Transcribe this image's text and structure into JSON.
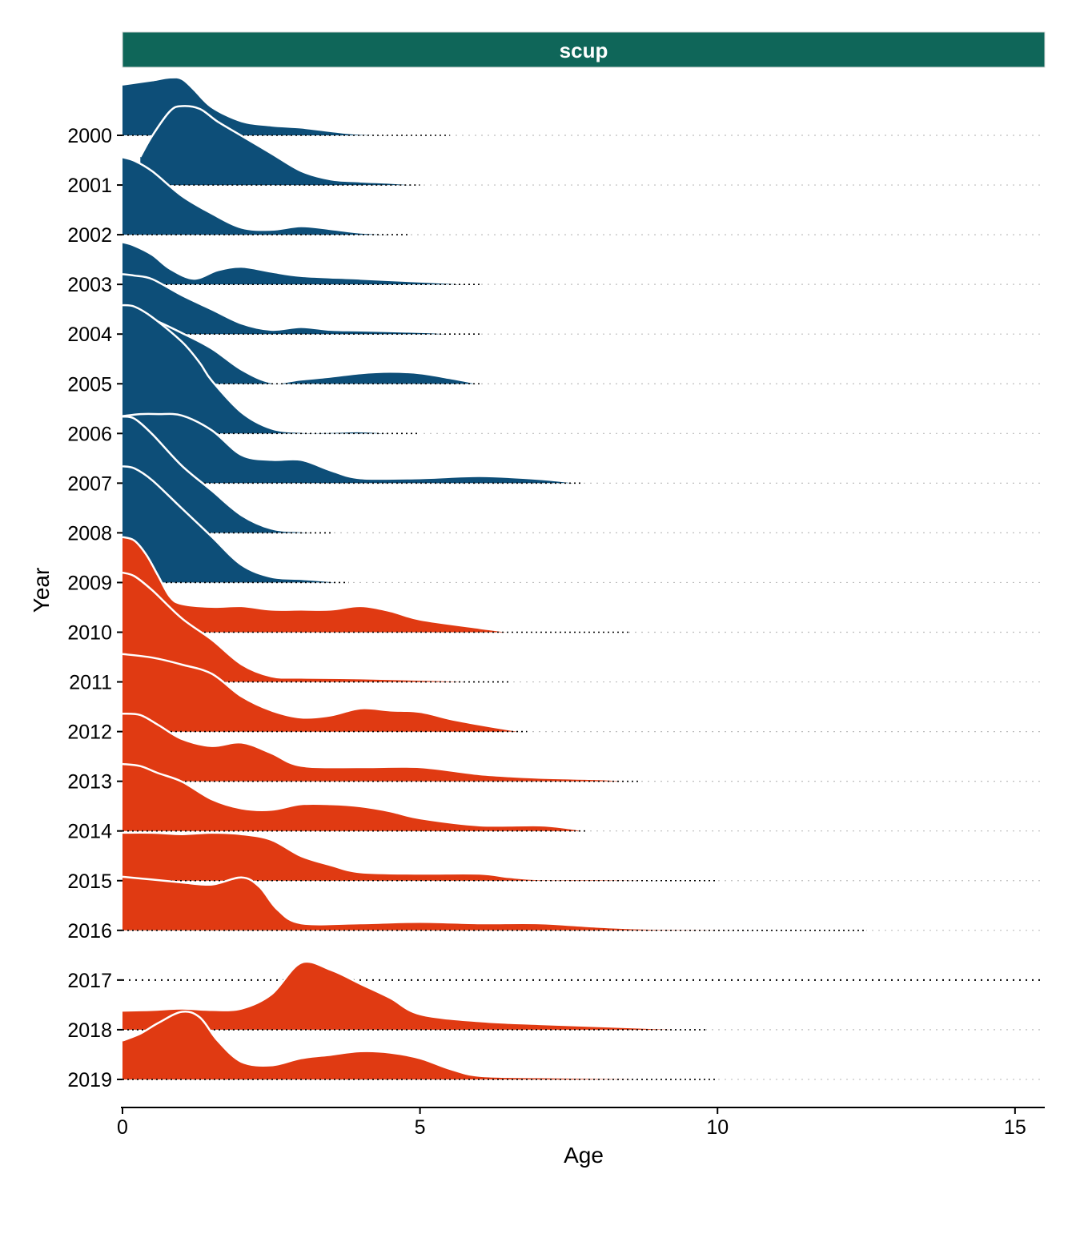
{
  "chart_data": {
    "type": "ridgeline",
    "facet_label": "scup",
    "xlabel": "Age",
    "ylabel": "Year",
    "xlim": [
      0,
      15.5
    ],
    "x_ticks": [
      0,
      5,
      10,
      15
    ],
    "colors": {
      "before_2010": "#0d4e78",
      "from_2010": "#e03a12",
      "strip": "#0f6659",
      "outline": "#ffffff"
    },
    "series": [
      {
        "year": "2000",
        "x": [
          0,
          0.25,
          0.5,
          0.8,
          1.0,
          1.2,
          1.5,
          2.0,
          2.5,
          3.0,
          3.5,
          4.0,
          5.0,
          5.5
        ],
        "y": [
          0.72,
          0.75,
          0.78,
          0.82,
          0.8,
          0.65,
          0.4,
          0.2,
          0.14,
          0.11,
          0.06,
          0.02,
          0.01,
          0
        ]
      },
      {
        "year": "2001",
        "x": [
          0.3,
          0.5,
          0.8,
          1.0,
          1.3,
          1.6,
          2.0,
          2.5,
          3.0,
          3.5,
          4.0,
          4.5,
          5.0
        ],
        "y": [
          0.4,
          0.7,
          1.05,
          1.12,
          1.08,
          0.9,
          0.7,
          0.45,
          0.2,
          0.08,
          0.05,
          0.03,
          0
        ]
      },
      {
        "year": "2002",
        "x": [
          0,
          0.2,
          0.5,
          1.0,
          1.5,
          2.0,
          2.5,
          3.0,
          3.5,
          4.0,
          4.5,
          4.8
        ],
        "y": [
          1.1,
          1.05,
          0.9,
          0.55,
          0.3,
          0.1,
          0.07,
          0.12,
          0.08,
          0.03,
          0.01,
          0
        ]
      },
      {
        "year": "2003",
        "x": [
          0,
          0.2,
          0.5,
          0.8,
          1.2,
          1.6,
          2.0,
          2.5,
          3.0,
          4.0,
          5.0,
          5.5,
          6.0
        ],
        "y": [
          0.6,
          0.55,
          0.42,
          0.22,
          0.08,
          0.2,
          0.25,
          0.18,
          0.12,
          0.08,
          0.04,
          0.02,
          0
        ]
      },
      {
        "year": "2004",
        "x": [
          0,
          0.2,
          0.5,
          1.0,
          1.5,
          2.0,
          2.5,
          3.0,
          3.5,
          4.0,
          5.0,
          5.5,
          6.0
        ],
        "y": [
          0.85,
          0.83,
          0.78,
          0.55,
          0.35,
          0.15,
          0.06,
          0.1,
          0.06,
          0.05,
          0.03,
          0.01,
          0
        ]
      },
      {
        "year": "2005",
        "x": [
          0,
          0.2,
          0.5,
          1.0,
          1.5,
          2.0,
          2.5,
          3.0,
          3.5,
          4.0,
          4.5,
          5.0,
          5.5,
          6.0
        ],
        "y": [
          1.04,
          1.02,
          0.92,
          0.72,
          0.5,
          0.2,
          0.02,
          0.06,
          0.1,
          0.15,
          0.17,
          0.15,
          0.08,
          0
        ]
      },
      {
        "year": "2006",
        "x": [
          0,
          0.2,
          0.5,
          1.0,
          1.3,
          1.5,
          2.0,
          2.5,
          3.0,
          3.5,
          4.0,
          4.5,
          5.0
        ],
        "y": [
          1.82,
          1.8,
          1.65,
          1.3,
          1.0,
          0.75,
          0.3,
          0.07,
          0.02,
          0.02,
          0.03,
          0.01,
          0
        ]
      },
      {
        "year": "2007",
        "x": [
          0,
          0.3,
          0.6,
          1.0,
          1.5,
          2.0,
          2.5,
          3.0,
          3.5,
          4.0,
          5.0,
          6.0,
          7.0,
          7.7
        ],
        "y": [
          0.95,
          0.98,
          0.98,
          0.96,
          0.75,
          0.4,
          0.33,
          0.33,
          0.18,
          0.07,
          0.07,
          0.1,
          0.06,
          0
        ]
      },
      {
        "year": "2008",
        "x": [
          0,
          0.2,
          0.5,
          1.0,
          1.5,
          2.0,
          2.5,
          3.0,
          3.5
        ],
        "y": [
          1.65,
          1.62,
          1.4,
          0.95,
          0.6,
          0.25,
          0.06,
          0.02,
          0
        ]
      },
      {
        "year": "2009",
        "x": [
          0,
          0.2,
          0.5,
          1.0,
          1.5,
          2.0,
          2.5,
          3.0,
          3.5,
          3.8
        ],
        "y": [
          1.65,
          1.62,
          1.45,
          1.05,
          0.65,
          0.25,
          0.08,
          0.05,
          0.02,
          0
        ]
      },
      {
        "year": "2010",
        "x": [
          0,
          0.2,
          0.4,
          0.6,
          0.8,
          1.0,
          1.5,
          2.0,
          2.5,
          3.0,
          3.5,
          4.0,
          4.5,
          5.0,
          6.0,
          6.5,
          7.0,
          8.5
        ],
        "y": [
          1.35,
          1.3,
          1.1,
          0.8,
          0.5,
          0.4,
          0.36,
          0.37,
          0.32,
          0.32,
          0.32,
          0.37,
          0.3,
          0.18,
          0.06,
          0.01,
          0.01,
          0
        ]
      },
      {
        "year": "2011",
        "x": [
          0,
          0.2,
          0.5,
          1.0,
          1.5,
          2.0,
          2.5,
          3.0,
          4.0,
          5.0,
          6.0,
          6.5
        ],
        "y": [
          1.55,
          1.5,
          1.3,
          0.9,
          0.6,
          0.25,
          0.08,
          0.06,
          0.05,
          0.03,
          0.01,
          0
        ]
      },
      {
        "year": "2012",
        "x": [
          0,
          0.5,
          1.0,
          1.5,
          2.0,
          2.5,
          3.0,
          3.5,
          4.0,
          4.5,
          5.0,
          5.5,
          6.0,
          6.5,
          6.8
        ],
        "y": [
          1.1,
          1.05,
          0.95,
          0.82,
          0.5,
          0.3,
          0.2,
          0.23,
          0.33,
          0.3,
          0.28,
          0.18,
          0.1,
          0.03,
          0
        ]
      },
      {
        "year": "2013",
        "x": [
          0,
          0.3,
          0.6,
          1.0,
          1.5,
          2.0,
          2.5,
          3.0,
          4.0,
          5.0,
          6.0,
          7.0,
          8.0,
          8.7
        ],
        "y": [
          0.96,
          0.94,
          0.8,
          0.6,
          0.5,
          0.55,
          0.4,
          0.22,
          0.2,
          0.2,
          0.1,
          0.05,
          0.03,
          0
        ]
      },
      {
        "year": "2014",
        "x": [
          0,
          0.3,
          0.6,
          1.0,
          1.5,
          2.0,
          2.5,
          3.0,
          3.5,
          4.0,
          4.5,
          5.0,
          6.0,
          7.0,
          7.5,
          7.8
        ],
        "y": [
          0.95,
          0.92,
          0.82,
          0.7,
          0.45,
          0.32,
          0.3,
          0.38,
          0.38,
          0.35,
          0.28,
          0.18,
          0.08,
          0.08,
          0.04,
          0
        ]
      },
      {
        "year": "2015",
        "x": [
          0,
          0.5,
          1.0,
          1.5,
          2.0,
          2.5,
          3.0,
          3.5,
          4.0,
          5.0,
          6.0,
          6.5,
          7.0,
          8.0,
          9.0,
          10.0
        ],
        "y": [
          0.68,
          0.68,
          0.66,
          0.68,
          0.66,
          0.58,
          0.35,
          0.22,
          0.12,
          0.1,
          0.1,
          0.05,
          0.02,
          0.02,
          0.01,
          0
        ]
      },
      {
        "year": "2016",
        "x": [
          0,
          0.5,
          1.0,
          1.5,
          2.0,
          2.3,
          2.6,
          3.0,
          4.0,
          5.0,
          6.0,
          7.0,
          8.0,
          9.0,
          11.0,
          12.5
        ],
        "y": [
          0.76,
          0.72,
          0.68,
          0.65,
          0.75,
          0.62,
          0.3,
          0.1,
          0.1,
          0.12,
          0.1,
          0.1,
          0.05,
          0.02,
          0.01,
          0
        ]
      },
      {
        "year": "2017",
        "x": [],
        "y": []
      },
      {
        "year": "2018",
        "x": [
          0,
          0.5,
          1.0,
          1.5,
          2.0,
          2.5,
          3.0,
          3.5,
          4.0,
          4.5,
          5.0,
          6.0,
          7.0,
          8.0,
          9.0,
          9.8
        ],
        "y": [
          0.27,
          0.28,
          0.3,
          0.28,
          0.3,
          0.5,
          0.95,
          0.85,
          0.65,
          0.45,
          0.22,
          0.12,
          0.08,
          0.05,
          0.02,
          0
        ]
      },
      {
        "year": "2019",
        "x": [
          0,
          0.3,
          0.6,
          1.0,
          1.3,
          1.6,
          2.0,
          2.5,
          3.0,
          3.5,
          4.0,
          4.5,
          5.0,
          5.5,
          6.0,
          7.0,
          8.0,
          9.0,
          10.0
        ],
        "y": [
          0.55,
          0.65,
          0.8,
          0.96,
          0.88,
          0.55,
          0.25,
          0.2,
          0.3,
          0.35,
          0.4,
          0.38,
          0.3,
          0.15,
          0.05,
          0.03,
          0.02,
          0.01,
          0
        ]
      }
    ]
  }
}
